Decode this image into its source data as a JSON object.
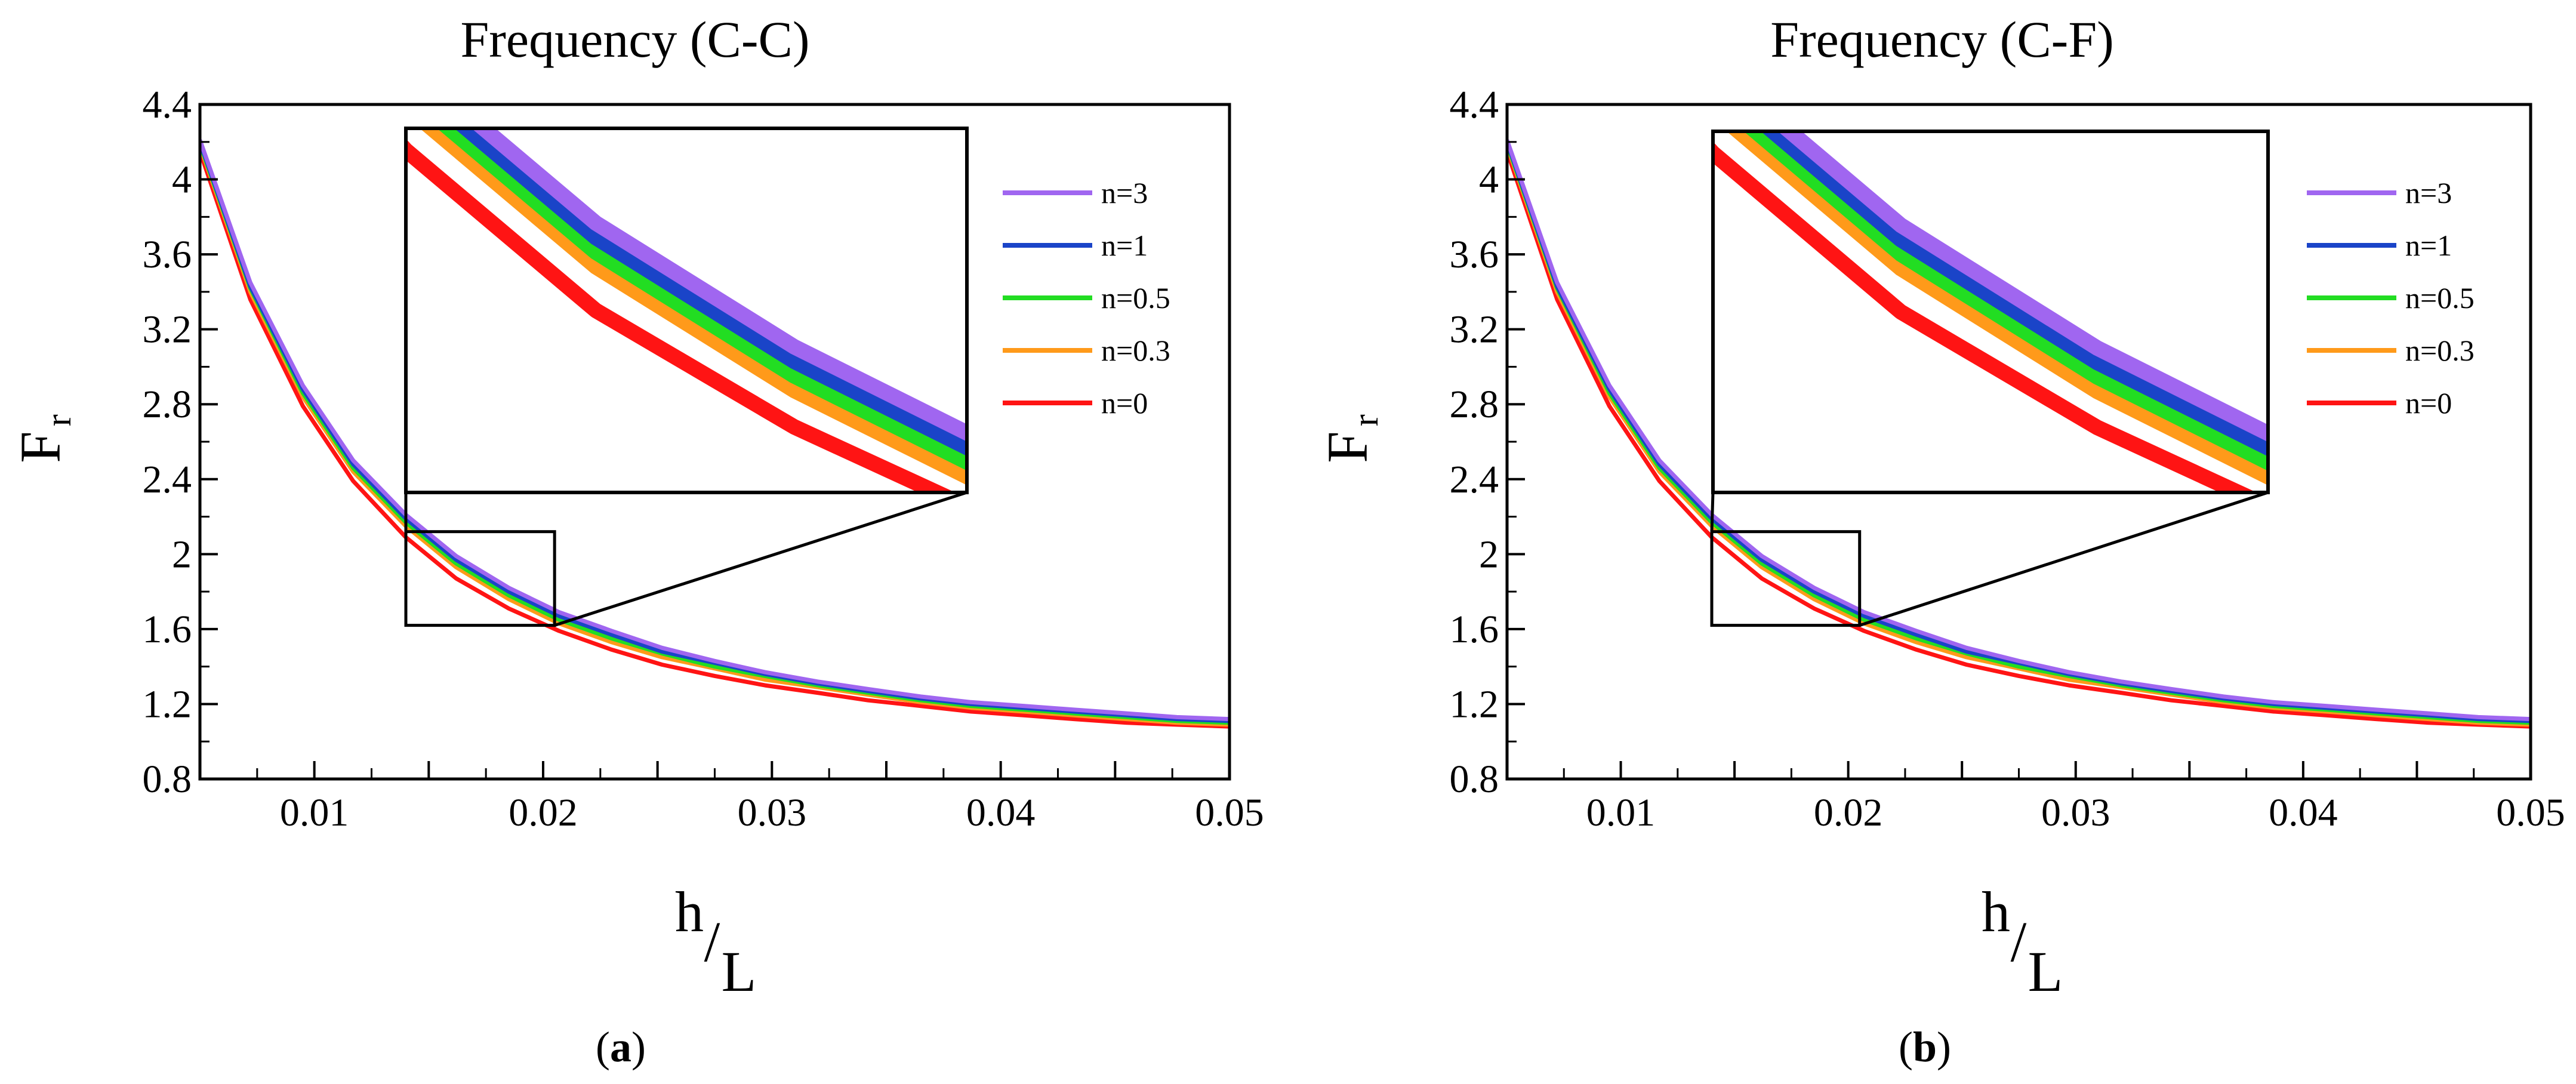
{
  "figure": {
    "panel_labels": [
      {
        "open": "(",
        "letter": "a",
        "close": ")"
      },
      {
        "open": "(",
        "letter": "b",
        "close": ")"
      }
    ]
  },
  "chart_data": [
    {
      "type": "line",
      "title": "Frequency (C-C)",
      "ylabel": {
        "main": "F",
        "sub": "r"
      },
      "xlabel": {
        "main": "h",
        "slash": "/",
        "den": "L"
      },
      "xlim": [
        0.005,
        0.05
      ],
      "ylim": [
        0.8,
        4.4
      ],
      "xticks": [
        0.01,
        0.02,
        0.03,
        0.04,
        0.05
      ],
      "xtick_labels": [
        "0.01",
        "0.02",
        "0.03",
        "0.04",
        "0.05"
      ],
      "yticks": [
        0.8,
        1.2,
        1.6,
        2.0,
        2.4,
        2.8,
        3.2,
        3.6,
        4.0,
        4.4
      ],
      "ytick_labels": [
        "0.8",
        "1.2",
        "1.6",
        "2",
        "2.4",
        "2.8",
        "3.2",
        "3.6",
        "4",
        "4.4"
      ],
      "legend_position": "top-right",
      "x": [
        0.005,
        0.0072,
        0.0095,
        0.0117,
        0.014,
        0.0162,
        0.0185,
        0.0207,
        0.023,
        0.0252,
        0.0275,
        0.0297,
        0.032,
        0.0342,
        0.0365,
        0.0387,
        0.041,
        0.0432,
        0.0455,
        0.0477,
        0.05
      ],
      "series": [
        {
          "name": "n=3",
          "color": "#a066f0",
          "values": [
            4.21,
            3.45,
            2.9,
            2.5,
            2.21,
            1.99,
            1.82,
            1.69,
            1.59,
            1.5,
            1.43,
            1.37,
            1.32,
            1.28,
            1.24,
            1.21,
            1.19,
            1.17,
            1.15,
            1.13,
            1.12
          ]
        },
        {
          "name": "n=1",
          "color": "#1a44c8",
          "values": [
            4.2,
            3.43,
            2.88,
            2.48,
            2.19,
            1.97,
            1.8,
            1.67,
            1.57,
            1.48,
            1.42,
            1.36,
            1.31,
            1.27,
            1.23,
            1.2,
            1.18,
            1.16,
            1.14,
            1.12,
            1.11
          ]
        },
        {
          "name": "n=0.5",
          "color": "#22dd22",
          "values": [
            4.19,
            3.42,
            2.86,
            2.46,
            2.17,
            1.95,
            1.78,
            1.65,
            1.55,
            1.47,
            1.4,
            1.35,
            1.3,
            1.26,
            1.22,
            1.19,
            1.17,
            1.15,
            1.13,
            1.11,
            1.1
          ]
        },
        {
          "name": "n=0.3",
          "color": "#ff9a1a",
          "values": [
            4.18,
            3.4,
            2.84,
            2.44,
            2.15,
            1.93,
            1.76,
            1.63,
            1.53,
            1.45,
            1.39,
            1.33,
            1.29,
            1.25,
            1.21,
            1.18,
            1.16,
            1.14,
            1.12,
            1.1,
            1.09
          ]
        },
        {
          "name": "n=0",
          "color": "#ff1414",
          "values": [
            4.15,
            3.36,
            2.79,
            2.39,
            2.09,
            1.87,
            1.71,
            1.59,
            1.49,
            1.41,
            1.35,
            1.3,
            1.26,
            1.22,
            1.19,
            1.16,
            1.14,
            1.12,
            1.1,
            1.09,
            1.08
          ]
        }
      ],
      "zoom_box": {
        "x": [
          0.014,
          0.0205
        ],
        "y": [
          1.62,
          2.12
        ]
      }
    },
    {
      "type": "line",
      "title": "Frequency (C-F)",
      "ylabel": {
        "main": "F",
        "sub": "r"
      },
      "xlabel": {
        "main": "h",
        "slash": "/",
        "den": "L"
      },
      "xlim": [
        0.005,
        0.05
      ],
      "ylim": [
        0.8,
        4.4
      ],
      "xticks": [
        0.01,
        0.02,
        0.03,
        0.04,
        0.05
      ],
      "xtick_labels": [
        "0.01",
        "0.02",
        "0.03",
        "0.04",
        "0.05"
      ],
      "yticks": [
        0.8,
        1.2,
        1.6,
        2.0,
        2.4,
        2.8,
        3.2,
        3.6,
        4.0,
        4.4
      ],
      "ytick_labels": [
        "0.8",
        "1.2",
        "1.6",
        "2",
        "2.4",
        "2.8",
        "3.2",
        "3.6",
        "4",
        "4.4"
      ],
      "legend_position": "top-right",
      "x": [
        0.005,
        0.0072,
        0.0095,
        0.0117,
        0.014,
        0.0162,
        0.0185,
        0.0207,
        0.023,
        0.0252,
        0.0275,
        0.0297,
        0.032,
        0.0342,
        0.0365,
        0.0387,
        0.041,
        0.0432,
        0.0455,
        0.0477,
        0.05
      ],
      "series": [
        {
          "name": "n=3",
          "color": "#a066f0",
          "values": [
            4.21,
            3.45,
            2.9,
            2.5,
            2.21,
            1.99,
            1.82,
            1.69,
            1.59,
            1.5,
            1.43,
            1.37,
            1.32,
            1.28,
            1.24,
            1.21,
            1.19,
            1.17,
            1.15,
            1.13,
            1.12
          ]
        },
        {
          "name": "n=1",
          "color": "#1a44c8",
          "values": [
            4.2,
            3.43,
            2.88,
            2.48,
            2.19,
            1.97,
            1.8,
            1.67,
            1.57,
            1.48,
            1.42,
            1.36,
            1.31,
            1.27,
            1.23,
            1.2,
            1.18,
            1.16,
            1.14,
            1.12,
            1.11
          ]
        },
        {
          "name": "n=0.5",
          "color": "#22dd22",
          "values": [
            4.19,
            3.42,
            2.86,
            2.46,
            2.17,
            1.95,
            1.78,
            1.65,
            1.55,
            1.47,
            1.4,
            1.35,
            1.3,
            1.26,
            1.22,
            1.19,
            1.17,
            1.15,
            1.13,
            1.11,
            1.1
          ]
        },
        {
          "name": "n=0.3",
          "color": "#ff9a1a",
          "values": [
            4.18,
            3.4,
            2.84,
            2.44,
            2.15,
            1.93,
            1.76,
            1.63,
            1.53,
            1.45,
            1.39,
            1.33,
            1.29,
            1.25,
            1.21,
            1.18,
            1.16,
            1.14,
            1.12,
            1.1,
            1.09
          ]
        },
        {
          "name": "n=0",
          "color": "#ff1414",
          "values": [
            4.15,
            3.36,
            2.79,
            2.39,
            2.09,
            1.87,
            1.71,
            1.59,
            1.49,
            1.41,
            1.35,
            1.3,
            1.26,
            1.22,
            1.19,
            1.16,
            1.14,
            1.12,
            1.1,
            1.09,
            1.08
          ]
        }
      ],
      "zoom_box": {
        "x": [
          0.014,
          0.0205
        ],
        "y": [
          1.62,
          2.12
        ]
      }
    }
  ]
}
